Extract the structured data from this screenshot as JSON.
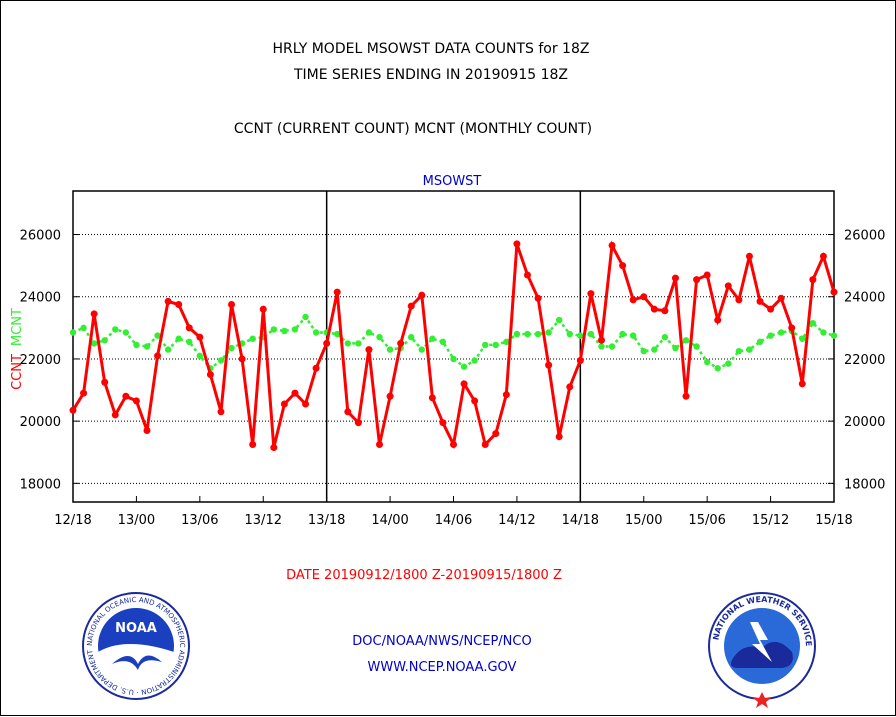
{
  "titles": {
    "line1": "HRLY MODEL MSOWST DATA COUNTS for 18Z",
    "line2": "TIME SERIES ENDING IN 20190915 18Z",
    "line3": "CCNT (CURRENT COUNT) MCNT (MONTHLY COUNT)"
  },
  "footer": {
    "date_range": "DATE 20190912/1800 Z-20190915/1800 Z",
    "org_line": "DOC/NOAA/NWS/NCEP/NCO",
    "url": "WWW.NCEP.NOAA.GOV"
  },
  "logos": {
    "noaa": {
      "center_text": "NOAA",
      "ring_text": "NATIONAL OCEANIC AND ATMOSPHERIC ADMINISTRATION · U.S. DEPARTMENT OF COMMERCE ·"
    },
    "nws": {
      "ring_text": "NATIONAL WEATHER SERVICE"
    }
  },
  "colors": {
    "ccnt": "#ff0000",
    "mcnt": "#33ee33",
    "accent_blue": "#0000cc",
    "grid": "#000000"
  },
  "chart_data": {
    "type": "line",
    "title": "MSOWST",
    "ylabel_left": [
      "CCNT",
      "MCNT"
    ],
    "yticks": [
      18000,
      20000,
      22000,
      24000,
      26000
    ],
    "ylim": [
      17400,
      27400
    ],
    "x_tick_labels": [
      "12/18",
      "13/00",
      "13/06",
      "13/12",
      "13/18",
      "14/00",
      "14/06",
      "14/12",
      "14/18",
      "15/00",
      "15/06",
      "15/12",
      "15/18"
    ],
    "x_hours": [
      0,
      72
    ],
    "vertical_dividers_at_hours": [
      24,
      48
    ],
    "grid": true,
    "x": [
      0,
      1,
      2,
      3,
      4,
      5,
      6,
      7,
      8,
      9,
      10,
      11,
      12,
      13,
      14,
      15,
      16,
      17,
      18,
      19,
      20,
      21,
      22,
      23,
      24,
      25,
      26,
      27,
      28,
      29,
      30,
      31,
      32,
      33,
      34,
      35,
      36,
      37,
      38,
      39,
      40,
      41,
      42,
      43,
      44,
      45,
      46,
      47,
      48,
      49,
      50,
      51,
      52,
      53,
      54,
      55,
      56,
      57,
      58,
      59,
      60,
      61,
      62,
      63,
      64,
      65,
      66,
      67,
      68,
      69,
      70,
      71,
      72
    ],
    "series": [
      {
        "name": "CCNT",
        "color": "#ff0000",
        "values": [
          20350,
          20900,
          23450,
          21250,
          20200,
          20800,
          20650,
          19700,
          22100,
          23850,
          23750,
          23000,
          22700,
          21500,
          20300,
          23750,
          22000,
          19250,
          23600,
          19150,
          20550,
          20900,
          20550,
          21700,
          22500,
          24150,
          20300,
          19950,
          22300,
          19250,
          20800,
          22500,
          23700,
          24050,
          20750,
          19950,
          19250,
          21200,
          20650,
          19250,
          19600,
          20850,
          25700,
          24700,
          23950,
          21800,
          19500,
          21100,
          21950,
          24100,
          22600,
          25650,
          25000,
          23900,
          24000,
          23600,
          23550,
          24600,
          20800,
          24550,
          24700,
          23250,
          24350,
          23900,
          25300,
          23850,
          23600,
          23950,
          23000,
          21200,
          24550,
          25300,
          24150
        ]
      },
      {
        "name": "MCNT",
        "color": "#33ee33",
        "values": [
          22850,
          23000,
          22500,
          22600,
          22950,
          22850,
          22450,
          22400,
          22750,
          22300,
          22650,
          22550,
          22100,
          21700,
          21950,
          22350,
          22500,
          22650,
          22700,
          22950,
          22900,
          22950,
          23350,
          22850,
          22850,
          22800,
          22500,
          22500,
          22850,
          22700,
          22300,
          22350,
          22700,
          22300,
          22650,
          22550,
          22000,
          21750,
          21950,
          22450,
          22450,
          22550,
          22800,
          22800,
          22800,
          22850,
          23250,
          22800,
          22750,
          22800,
          22400,
          22400,
          22800,
          22750,
          22250,
          22300,
          22700,
          22350,
          22600,
          22400,
          21900,
          21700,
          21850,
          22250,
          22300,
          22550,
          22750,
          22850,
          22900,
          22650,
          23150,
          22850,
          22750
        ]
      }
    ]
  }
}
